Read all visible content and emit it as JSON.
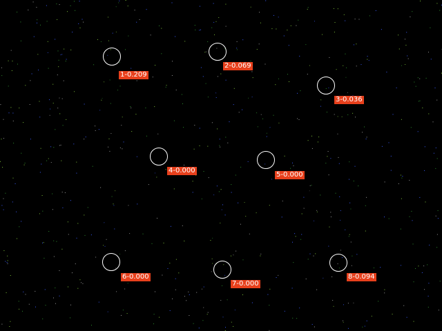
{
  "scene": {
    "background_color": "#000000",
    "grid_color": "#7fc23a",
    "marker_color": "#ffffff",
    "label_bg_color": "#e8401c",
    "label_text_color": "#ffffff"
  },
  "detections": [
    {
      "label": "1-0.209"
    },
    {
      "label": "2-0.069"
    },
    {
      "label": "3-0.036"
    },
    {
      "label": "4-0.000"
    },
    {
      "label": "5-0.000"
    },
    {
      "label": "6-0.000"
    },
    {
      "label": "7-0.000"
    },
    {
      "label": "8-0.094"
    }
  ]
}
